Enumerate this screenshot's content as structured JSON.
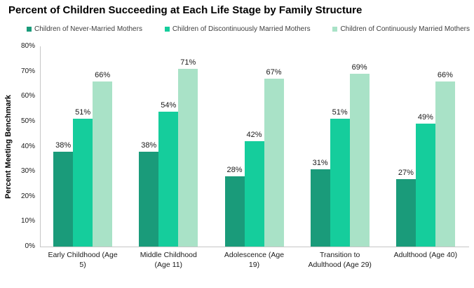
{
  "chart_data": {
    "type": "bar",
    "title": "Percent of Children Succeeding at Each Life Stage by Family Structure",
    "xlabel": "",
    "ylabel": "Percent Meeting Benchmark",
    "ylim": [
      0,
      80
    ],
    "yticks": [
      "0%",
      "10%",
      "20%",
      "30%",
      "40%",
      "50%",
      "60%",
      "70%",
      "80%"
    ],
    "grid": false,
    "legend_position": "top",
    "categories": [
      "Early Childhood (Age 5)",
      "Middle Childhood (Age 11)",
      "Adolescence (Age 19)",
      "Transition to Adulthood (Age 29)",
      "Adulthood (Age 40)"
    ],
    "category_tick_lines": [
      [
        "Early Childhood (Age",
        "5)"
      ],
      [
        "Middle Childhood",
        "(Age 11)"
      ],
      [
        "Adolescence (Age",
        "19)"
      ],
      [
        "Transition to",
        "Adulthood (Age 29)"
      ],
      [
        "Adulthood (Age 40)"
      ]
    ],
    "series": [
      {
        "name": "Children of Never-Married Mothers",
        "color": "#1A9B7A",
        "values": [
          38,
          38,
          28,
          31,
          27
        ]
      },
      {
        "name": "Children of Discontinuously Married Mothers",
        "color": "#15CD9C",
        "values": [
          51,
          54,
          42,
          51,
          49
        ]
      },
      {
        "name": "Children of Continuously Married Mothers",
        "color": "#A9E2C7",
        "values": [
          66,
          71,
          67,
          69,
          66
        ]
      }
    ],
    "data_labels": [
      [
        "38%",
        "51%",
        "66%"
      ],
      [
        "38%",
        "54%",
        "71%"
      ],
      [
        "28%",
        "42%",
        "67%"
      ],
      [
        "31%",
        "51%",
        "69%"
      ],
      [
        "27%",
        "49%",
        "66%"
      ]
    ]
  },
  "colors": {
    "axis_line": "#C6C6C6",
    "title_text": "#000000",
    "tick_text": "#1A1A1A",
    "legend_text": "#404040",
    "background": "#FFFFFF"
  }
}
